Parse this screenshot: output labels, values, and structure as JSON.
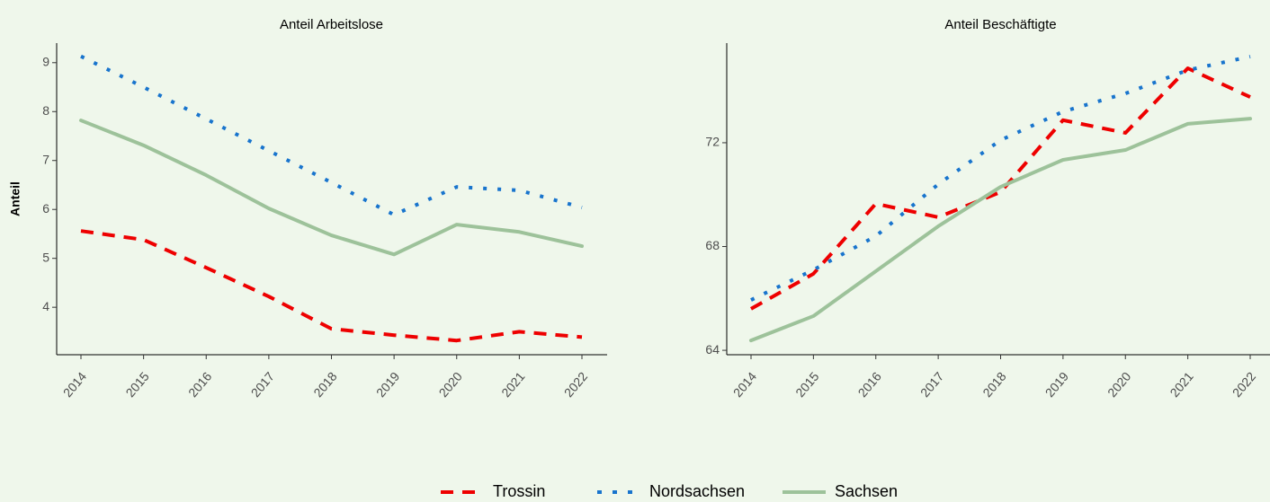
{
  "chart_data": [
    {
      "type": "line",
      "title": "Anteil Arbeitslose",
      "ylabel": "Anteil",
      "categories": [
        "2014",
        "2015",
        "2016",
        "2017",
        "2018",
        "2019",
        "2020",
        "2021",
        "2022"
      ],
      "series": [
        {
          "name": "Trossin",
          "color": "#ee0000",
          "linestyle": "dashed",
          "values": [
            5.56,
            5.38,
            4.81,
            4.22,
            3.56,
            3.43,
            3.32,
            3.5,
            3.39
          ]
        },
        {
          "name": "Nordsachsen",
          "color": "#1874cd",
          "linestyle": "dotted",
          "values": [
            9.13,
            8.5,
            7.85,
            7.2,
            6.55,
            5.89,
            6.46,
            6.39,
            6.04
          ]
        },
        {
          "name": "Sachsen",
          "color": "#9dc29a",
          "linestyle": "solid",
          "values": [
            7.82,
            7.31,
            6.7,
            6.02,
            5.47,
            5.08,
            5.69,
            5.54,
            5.25
          ]
        }
      ],
      "ylim": [
        3.03,
        9.4
      ],
      "yticks": [
        4,
        5,
        6,
        7,
        8,
        9
      ]
    },
    {
      "type": "line",
      "title": "Anteil Beschäftigte",
      "categories": [
        "2014",
        "2015",
        "2016",
        "2017",
        "2018",
        "2019",
        "2020",
        "2021",
        "2022"
      ],
      "series": [
        {
          "name": "Trossin",
          "color": "#ee0000",
          "linestyle": "dashed",
          "values": [
            65.6,
            66.95,
            69.65,
            69.13,
            70.1,
            72.87,
            72.38,
            74.87,
            73.76
          ]
        },
        {
          "name": "Nordsachsen",
          "color": "#1874cd",
          "linestyle": "dotted",
          "values": [
            65.94,
            67.1,
            68.4,
            70.4,
            72.1,
            73.2,
            73.9,
            74.8,
            75.32
          ]
        },
        {
          "name": "Sachsen",
          "color": "#9dc29a",
          "linestyle": "solid",
          "values": [
            64.38,
            65.32,
            67.05,
            68.78,
            70.3,
            71.34,
            71.72,
            72.73,
            72.93
          ]
        }
      ],
      "ylim": [
        63.83,
        75.84
      ],
      "yticks": [
        64,
        68,
        72
      ]
    }
  ]
}
